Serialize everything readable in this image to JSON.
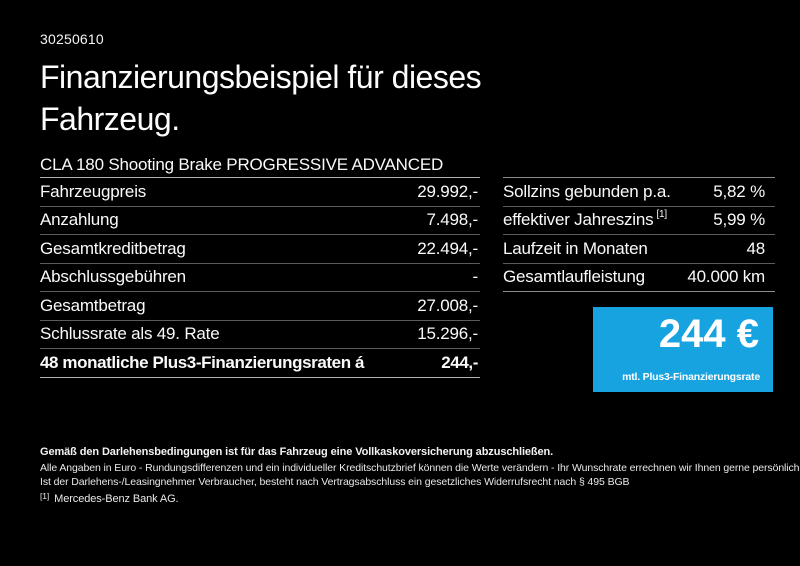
{
  "colors": {
    "background": "#000000",
    "text": "#ffffff",
    "divider_weak": "#5c5c5c",
    "divider_strong": "#b2b2b2",
    "accent_blue": "#16a3df"
  },
  "doc_number": "30250610",
  "title": "Finanzierungsbeispiel für dieses Fahrzeug.",
  "vehicle": "CLA 180 Shooting Brake PROGRESSIVE ADVANCED",
  "finance_table": {
    "rows": [
      {
        "label": "Fahrzeugpreis",
        "value": "29.992,-"
      },
      {
        "label": "Anzahlung",
        "value": "7.498,-"
      },
      {
        "label": "Gesamtkreditbetrag",
        "value": "22.494,-"
      },
      {
        "label": "Abschlussgebühren",
        "value": "-"
      },
      {
        "label": "Gesamtbetrag",
        "value": "27.008,-"
      },
      {
        "label": "Schlussrate als 49. Rate",
        "value": "15.296,-"
      },
      {
        "label": "48 monatliche Plus3-Finanzierungsraten á",
        "value": "244,-"
      }
    ]
  },
  "conditions_table": {
    "rows": [
      {
        "label": "Sollzins gebunden p.a.",
        "value": "5,82 %"
      },
      {
        "label": "effektiver Jahreszins",
        "sup": "[1]",
        "value": "5,99 %"
      },
      {
        "label": "Laufzeit in Monaten",
        "value": "48"
      },
      {
        "label": "Gesamtlaufleistung",
        "value": "40.000 km"
      }
    ]
  },
  "rate_box": {
    "amount": "244 €",
    "caption": "mtl. Plus3-Finanzierungsrate"
  },
  "footer": {
    "insurance_note": "Gemäß den Darlehensbedingungen ist für das Fahrzeug eine Vollkaskoversicherung abzuschließen.",
    "disclaimer_line1": "Alle Angaben in Euro - Rundungsdifferenzen und ein individueller Kreditschutzbrief können die Werte verändern - Ihr Wunschrate errechnen wir Ihnen gerne persönlich",
    "disclaimer_line2": "Ist der Darlehens-/Leasingnehmer Verbraucher, besteht nach Vertragsabschluss ein gesetzliches Widerrufsrecht nach § 495 BGB",
    "footnote_marker": "[1]",
    "footnote_text": "Mercedes-Benz Bank AG."
  }
}
